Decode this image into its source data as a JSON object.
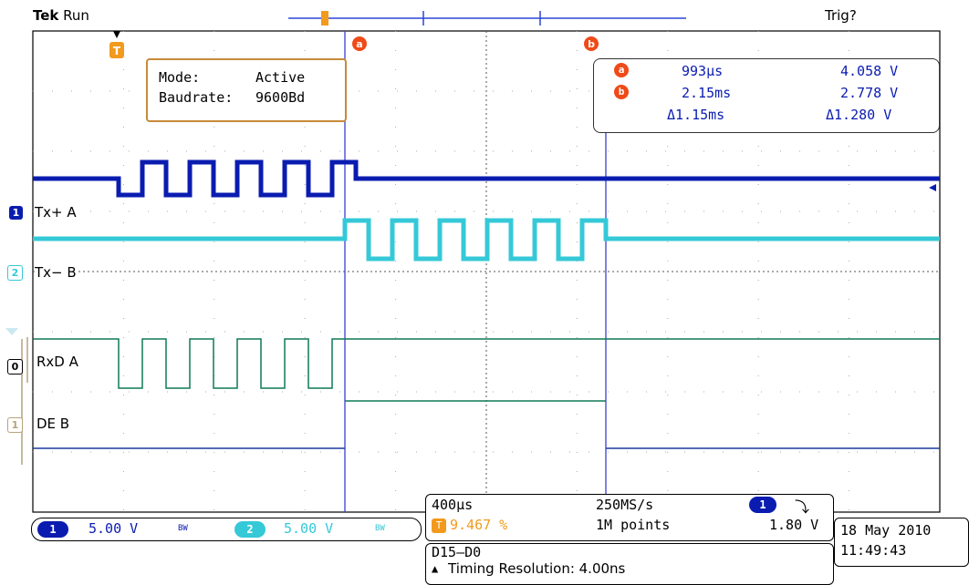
{
  "header": {
    "brand": "Tek",
    "run_state": "Run",
    "trigger_state": "Trig?"
  },
  "trigger_marker": "T",
  "decode_box": {
    "mode_label": "Mode:",
    "mode_value": "Active",
    "baud_label": "Baudrate:",
    "baud_value": "9600Bd"
  },
  "cursors": {
    "a_label": "a",
    "b_label": "b",
    "a_time": "993µs",
    "a_volt": "4.058 V",
    "b_time": "2.15ms",
    "b_volt": "2.778 V",
    "delta_time": "Δ1.15ms",
    "delta_volt": "Δ1.280 V"
  },
  "channels": [
    {
      "marker": "1",
      "label": "Tx+ A",
      "color": "#0a1cb0"
    },
    {
      "marker": "2",
      "label": "Tx− B",
      "color": "#35c9d8"
    },
    {
      "marker": "0",
      "label": "RxD A",
      "color": "#0f7a55"
    },
    {
      "marker": "1",
      "label": "DE B",
      "color": "#1a3aa0"
    }
  ],
  "vertical": {
    "ch1_id": "1",
    "ch1_scale": "5.00 V",
    "ch1_bw": "BW",
    "ch2_id": "2",
    "ch2_scale": "5.00 V",
    "ch2_bw": "BW"
  },
  "horizontal": {
    "timebase": "400µs",
    "sample_rate": "250MS/s",
    "trigger_pos": "9.467 %",
    "record_length": "1M points",
    "trig_source": "1",
    "trig_level": "1.80 V"
  },
  "digital": {
    "channels": "D15–D0",
    "timing_resolution": "Timing Resolution: 4.00ns"
  },
  "datetime": {
    "date": "18 May 2010",
    "time": "11:49:43"
  },
  "colors": {
    "ch1": "#0a1cb0",
    "ch2": "#35c9d8",
    "digital0": "#0f7a55",
    "digital1": "#1a3aa0",
    "cursor": "#3a3fd0",
    "trigger": "#f19a1d",
    "badge": "#ef4a17"
  }
}
